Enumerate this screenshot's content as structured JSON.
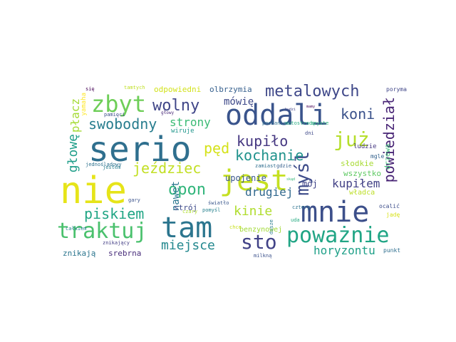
{
  "words": [
    {
      "text": "nie",
      "color": "#e6e419"
    },
    {
      "text": "serio",
      "color": "#2f6f8e"
    },
    {
      "text": "jest",
      "color": "#c5e021"
    },
    {
      "text": "oddali",
      "color": "#3a548c"
    },
    {
      "text": "mnie",
      "color": "#3c4f8a"
    },
    {
      "text": "tam",
      "color": "#2b758e"
    },
    {
      "text": "zbyt",
      "color": "#6ece58"
    },
    {
      "text": "traktuj",
      "color": "#4ac16d"
    },
    {
      "text": "poważnie",
      "color": "#21a585"
    },
    {
      "text": "sto",
      "color": "#414287"
    },
    {
      "text": "myśl",
      "color": "#3e4c8a"
    },
    {
      "text": "już",
      "color": "#b5de2b"
    },
    {
      "text": "metalowych",
      "color": "#3f4889"
    },
    {
      "text": "powiedział",
      "color": "#482475"
    },
    {
      "text": "koni",
      "color": "#3b528b"
    },
    {
      "text": "wolny",
      "color": "#404688"
    },
    {
      "text": "swobodny",
      "color": "#287d8e"
    },
    {
      "text": "kupiło",
      "color": "#453781"
    },
    {
      "text": "jeździec",
      "color": "#c2df23"
    },
    {
      "text": "opon",
      "color": "#31b57b"
    },
    {
      "text": "pęd",
      "color": "#d5e21a"
    },
    {
      "text": "kochanie",
      "color": "#20928c"
    },
    {
      "text": "głowę",
      "color": "#1f9e89"
    },
    {
      "text": "płacz",
      "color": "#a5db36"
    },
    {
      "text": "piskiem",
      "color": "#21a685"
    },
    {
      "text": "miejsce",
      "color": "#23888e"
    },
    {
      "text": "kinie",
      "color": "#b0dd2f"
    },
    {
      "text": "drugiej",
      "color": "#31688e"
    },
    {
      "text": "kupiłem",
      "color": "#424186"
    },
    {
      "text": "horyzontu",
      "color": "#1fa088"
    },
    {
      "text": "strony",
      "color": "#3bbb75"
    },
    {
      "text": "nawet",
      "color": "#2a768e"
    },
    {
      "text": "mówię",
      "color": "#3e4989"
    },
    {
      "text": "odpowiedni",
      "color": "#d2e21b"
    },
    {
      "text": "olbrzymia",
      "color": "#355f8d"
    },
    {
      "text": "upojenie",
      "color": "#39568c"
    },
    {
      "text": "mój",
      "color": "#404387"
    },
    {
      "text": "wszystko",
      "color": "#5ec962"
    },
    {
      "text": "słodkie",
      "color": "#a8db34"
    },
    {
      "text": "władca",
      "color": "#bddf26"
    },
    {
      "text": "drzewa",
      "color": "#3cbb75"
    },
    {
      "text": "strój",
      "color": "#3e4a89"
    },
    {
      "text": "benzynowej",
      "color": "#a2da37"
    },
    {
      "text": "znikają",
      "color": "#2b758e"
    },
    {
      "text": "srebrna",
      "color": "#472c7a"
    },
    {
      "text": "ludzie",
      "color": "#453781"
    },
    {
      "text": "mgle",
      "color": "#33628d"
    },
    {
      "text": "poryma",
      "color": "#404688"
    },
    {
      "text": "ocalić",
      "color": "#3d4d8a"
    },
    {
      "text": "jadę",
      "color": "#d8e219"
    },
    {
      "text": "punkt",
      "color": "#2e6e8e"
    },
    {
      "text": "milkną",
      "color": "#3b518b"
    },
    {
      "text": "dusze",
      "color": "#297b8e"
    },
    {
      "text": "uda",
      "color": "#25ab82"
    },
    {
      "text": "czyste",
      "color": "#30b47b"
    },
    {
      "text": "zamiast",
      "color": "#2e6d8e"
    },
    {
      "text": "gdzie",
      "color": "#355f8d"
    },
    {
      "text": "cztery",
      "color": "#2c728e"
    },
    {
      "text": "światło",
      "color": "#39568c"
    },
    {
      "text": "pomyśl",
      "color": "#27808e"
    },
    {
      "text": "chce",
      "color": "#c8e020"
    },
    {
      "text": "czary",
      "color": "#b0dd2f"
    },
    {
      "text": "gary",
      "color": "#3b528b"
    },
    {
      "text": "wiruje",
      "color": "#1f968b"
    },
    {
      "text": "jestem",
      "color": "#287c8e"
    },
    {
      "text": "jednośladowy",
      "color": "#2c718e"
    },
    {
      "text": "całkiem",
      "color": "#26828e"
    },
    {
      "text": "znikający",
      "color": "#433e85"
    },
    {
      "text": "pamięci",
      "color": "#3c4f8a"
    },
    {
      "text": "głowy",
      "color": "#482878"
    },
    {
      "text": "yamaha",
      "color": "#fde725"
    },
    {
      "text": "tamtych",
      "color": "#c0df25"
    },
    {
      "text": "się",
      "color": "#440154"
    },
    {
      "text": "posłaniec",
      "color": "#2d708e"
    },
    {
      "text": "autostradę",
      "color": "#27ad81"
    },
    {
      "text": "dni",
      "color": "#3e4989"
    },
    {
      "text": "budzi",
      "color": "#414487"
    },
    {
      "text": "skąd",
      "color": "#35b779"
    },
    {
      "text": "mamy",
      "color": "#440154"
    }
  ]
}
